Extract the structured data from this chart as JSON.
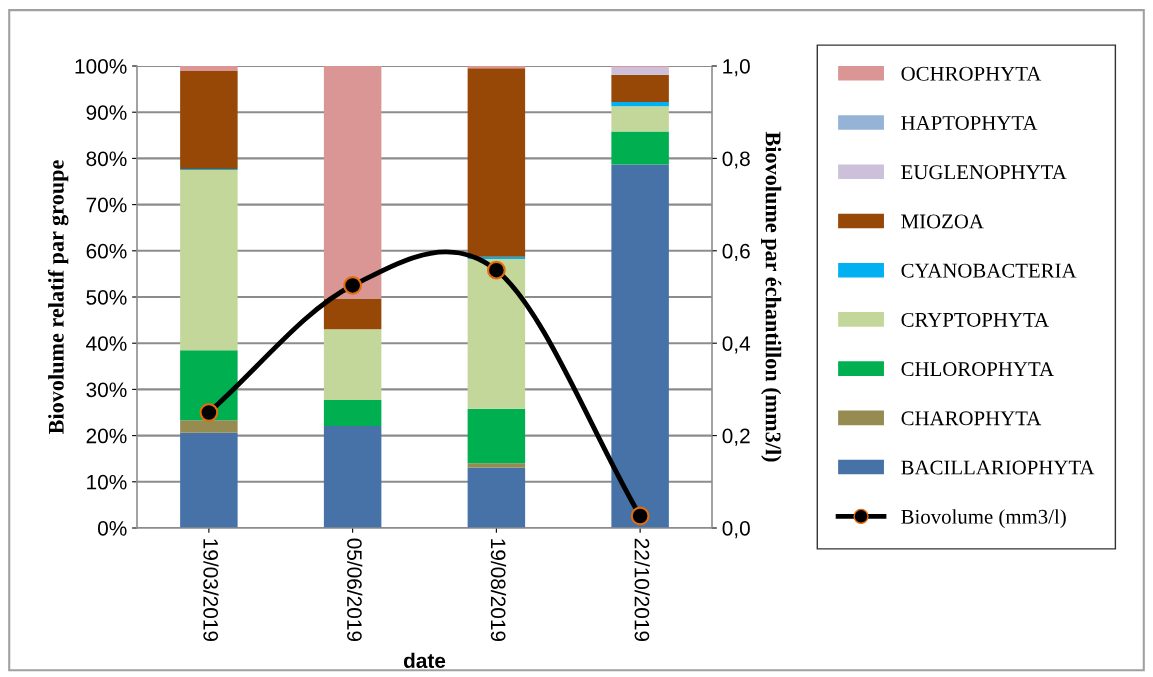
{
  "chart_data": {
    "type": "bar",
    "stacked": true,
    "xlabel": "date",
    "ylabel": "Biovolume relatif par groupe",
    "y2label": "Biovolume par échantillon (mm3/l)",
    "categories": [
      "19/03/2019",
      "05/06/2019",
      "19/08/2019",
      "22/10/2019"
    ],
    "series": [
      {
        "name": "BACILLARIOPHYTA",
        "color": "#4672a8",
        "values": [
          20.6,
          22.1,
          13.1,
          78.7
        ]
      },
      {
        "name": "CHAROPHYTA",
        "color": "#968c52",
        "values": [
          2.7,
          0,
          0.9,
          0
        ]
      },
      {
        "name": "CHLOROPHYTA",
        "color": "#00b050",
        "values": [
          15.2,
          5.6,
          11.8,
          7.1
        ]
      },
      {
        "name": "CRYPTOPHYTA",
        "color": "#c4d79b",
        "values": [
          39.0,
          15.3,
          32.4,
          5.5
        ]
      },
      {
        "name": "CYANOBACTERIA",
        "color": "#00b0f0",
        "values": [
          0.2,
          0,
          0.5,
          0.9
        ]
      },
      {
        "name": "MIOZOA",
        "color": "#974706",
        "values": [
          21.2,
          6.7,
          40.8,
          5.9
        ]
      },
      {
        "name": "EUGLENOPHYTA",
        "color": "#ccc0da",
        "values": [
          0,
          0,
          0,
          1.7
        ]
      },
      {
        "name": "HAPTOPHYTA",
        "color": "#95b3d7",
        "values": [
          0,
          0,
          0,
          0
        ]
      },
      {
        "name": "OCHROPHYTA",
        "color": "#da9694",
        "values": [
          1.1,
          50.3,
          0.5,
          0.2
        ]
      },
      {
        "name": "Biovolume (mm3/l)",
        "type": "line",
        "axis": "y2",
        "color": "#000000",
        "marker": "circle",
        "values": [
          0.25,
          0.525,
          0.558,
          0.026
        ]
      }
    ],
    "ylim": [
      0,
      100
    ],
    "yticks": [
      {
        "value": 0,
        "label": "0%"
      },
      {
        "value": 10,
        "label": "10%"
      },
      {
        "value": 20,
        "label": "20%"
      },
      {
        "value": 30,
        "label": "30%"
      },
      {
        "value": 40,
        "label": "40%"
      },
      {
        "value": 50,
        "label": "50%"
      },
      {
        "value": 60,
        "label": "60%"
      },
      {
        "value": 70,
        "label": "70%"
      },
      {
        "value": 80,
        "label": "80%"
      },
      {
        "value": 90,
        "label": "90%"
      },
      {
        "value": 100,
        "label": "100%"
      }
    ],
    "y2lim": [
      0,
      1
    ],
    "y2ticks": [
      {
        "value": 0,
        "label": "0,0"
      },
      {
        "value": 0.2,
        "label": "0,2"
      },
      {
        "value": 0.4,
        "label": "0,4"
      },
      {
        "value": 0.6,
        "label": "0,6"
      },
      {
        "value": 0.8,
        "label": "0,8"
      },
      {
        "value": 1,
        "label": "1,0"
      }
    ],
    "grid": "y",
    "legend": "right"
  }
}
